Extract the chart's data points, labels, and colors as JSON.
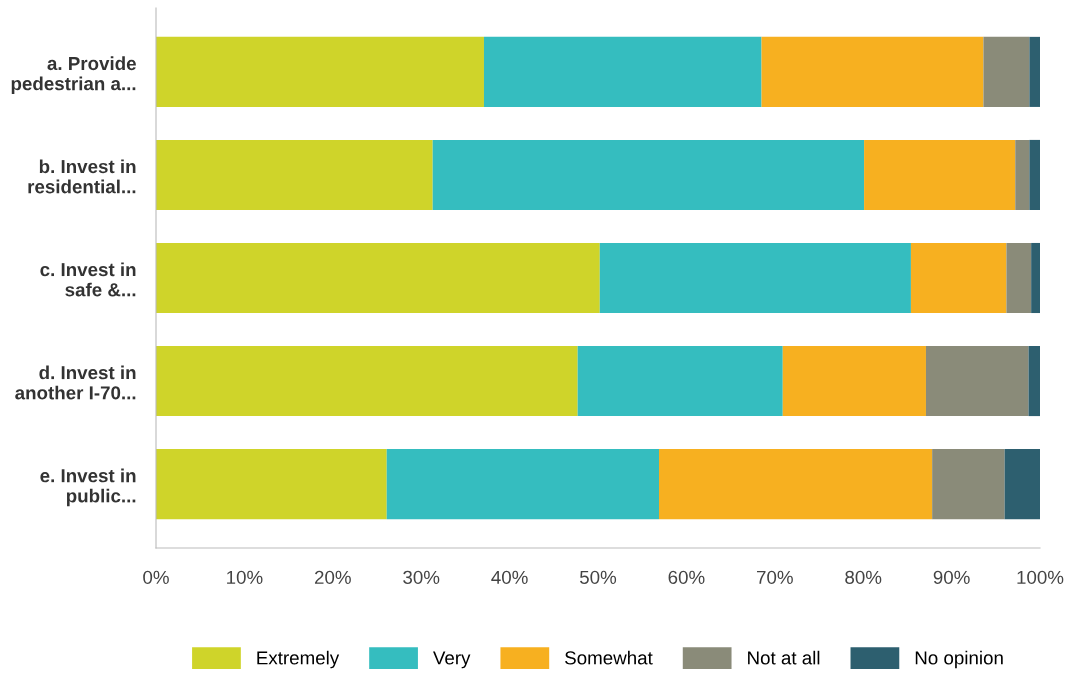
{
  "chart_data": {
    "type": "bar",
    "orientation": "horizontal",
    "stacked": true,
    "categories": [
      "a. Provide\npedestrian a...",
      "b. Invest in\nresidential...",
      "c. Invest in\nsafe &...",
      "d. Invest in\nanother I-70...",
      "e. Invest in\npublic..."
    ],
    "series": [
      {
        "name": "Extremely",
        "color": "#cfd42a",
        "values": [
          37.1,
          31.3,
          50.2,
          47.7,
          26.1
        ]
      },
      {
        "name": "Very",
        "color": "#35bdbf",
        "values": [
          31.4,
          48.8,
          35.2,
          23.2,
          30.8
        ]
      },
      {
        "name": "Somewhat",
        "color": "#f7b020",
        "values": [
          25.1,
          17.1,
          10.8,
          16.2,
          30.9
        ]
      },
      {
        "name": "Not at all",
        "color": "#8a8b79",
        "values": [
          5.2,
          1.6,
          2.8,
          11.6,
          8.2
        ]
      },
      {
        "name": "No opinion",
        "color": "#2d5f6f",
        "values": [
          1.2,
          1.2,
          1.0,
          1.3,
          4.0
        ]
      }
    ],
    "xlim": [
      0,
      100
    ],
    "xticks": [
      {
        "value": 0,
        "label": "0%"
      },
      {
        "value": 10,
        "label": "10%"
      },
      {
        "value": 20,
        "label": "20%"
      },
      {
        "value": 30,
        "label": "30%"
      },
      {
        "value": 40,
        "label": "40%"
      },
      {
        "value": 50,
        "label": "50%"
      },
      {
        "value": 60,
        "label": "60%"
      },
      {
        "value": 70,
        "label": "70%"
      },
      {
        "value": 80,
        "label": "80%"
      },
      {
        "value": 90,
        "label": "90%"
      },
      {
        "value": 100,
        "label": "100%"
      }
    ],
    "grid": false,
    "legend": "bottom"
  }
}
